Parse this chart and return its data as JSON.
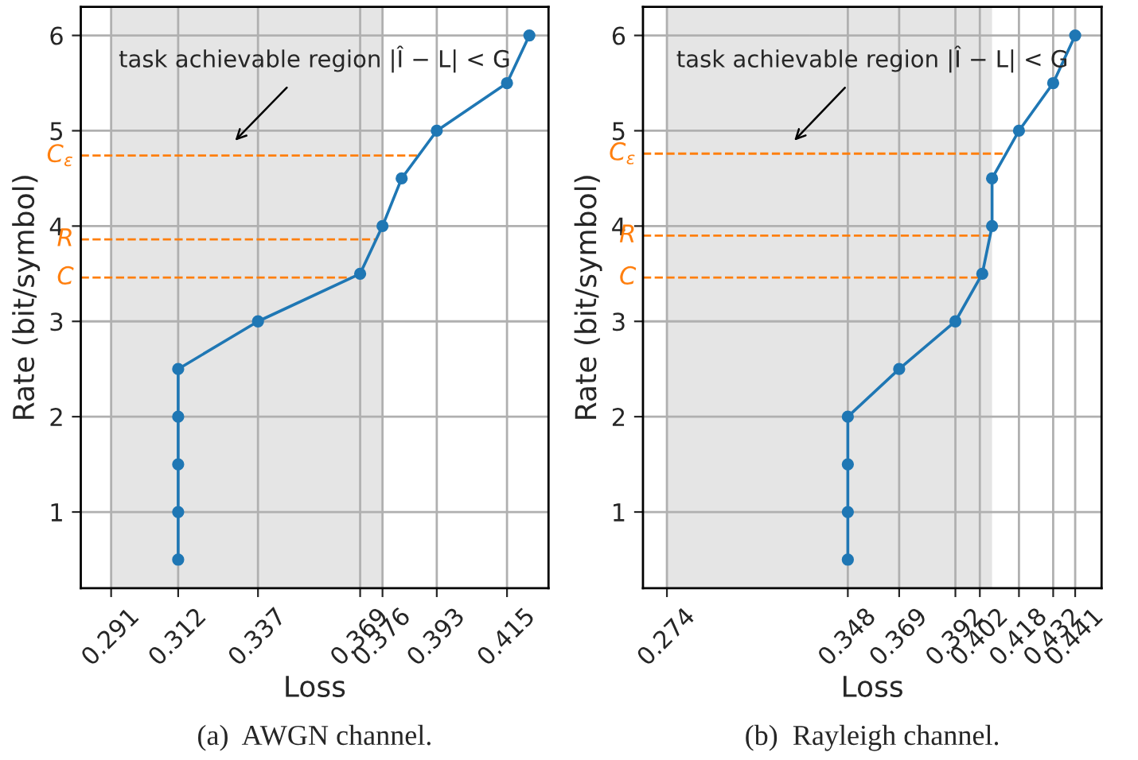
{
  "chart_data": [
    {
      "type": "line",
      "xlabel": "Loss",
      "ylabel": "Rate (bit/symbol)",
      "marker": "circle",
      "line_style": "solid",
      "grid": true,
      "xlim": [
        0.2815,
        0.428
      ],
      "xticks": [
        0.291,
        0.312,
        0.337,
        0.369,
        0.376,
        0.393,
        0.415
      ],
      "ylim": [
        0.2,
        6.3
      ],
      "yticks": [
        1,
        2,
        3,
        4,
        5,
        6
      ],
      "series": [
        {
          "color": "#1f77b4",
          "x": [
            0.312,
            0.312,
            0.312,
            0.312,
            0.312,
            0.337,
            0.369,
            0.376,
            0.382,
            0.393,
            0.415,
            0.422
          ],
          "values": [
            0.5,
            1,
            1.5,
            2,
            2.5,
            3,
            3.5,
            4,
            4.5,
            5,
            5.5,
            6
          ]
        }
      ],
      "bands": [
        {
          "axis": "x",
          "from": 0.291,
          "to": 0.376,
          "color": "#e5e5e5"
        }
      ],
      "ref_lines": [
        {
          "axis": "y",
          "value": 4.74,
          "label": "C$_{ε}$",
          "color": "#ff7f0e",
          "line_style": "dashed"
        },
        {
          "axis": "y",
          "value": 3.86,
          "label": "R",
          "color": "#ff7f0e",
          "line_style": "dashed"
        },
        {
          "axis": "y",
          "value": 3.46,
          "label": "C",
          "color": "#ff7f0e",
          "line_style": "dashed"
        }
      ],
      "annotations": [
        "task achievable region |Î − L| < G",
        "(a)  AWGN channel."
      ]
    },
    {
      "type": "line",
      "xlabel": "Loss",
      "ylabel": "Rate (bit/symbol)",
      "marker": "circle",
      "line_style": "solid",
      "grid": true,
      "xlim": [
        0.2642,
        0.4518
      ],
      "xticks": [
        0.274,
        0.348,
        0.369,
        0.392,
        0.402,
        0.418,
        0.432,
        0.441
      ],
      "ylim": [
        0.2,
        6.3
      ],
      "yticks": [
        1,
        2,
        3,
        4,
        5,
        6
      ],
      "series": [
        {
          "color": "#1f77b4",
          "x": [
            0.348,
            0.348,
            0.348,
            0.348,
            0.369,
            0.392,
            0.403,
            0.407,
            0.407,
            0.418,
            0.432,
            0.441
          ],
          "values": [
            0.5,
            1,
            1.5,
            2,
            2.5,
            3,
            3.5,
            4,
            4.5,
            5,
            5.5,
            6
          ]
        }
      ],
      "bands": [
        {
          "axis": "x",
          "from": 0.274,
          "to": 0.407,
          "color": "#e5e5e5"
        }
      ],
      "ref_lines": [
        {
          "axis": "y",
          "value": 4.76,
          "label": "C$_{ε}$",
          "color": "#ff7f0e",
          "line_style": "dashed"
        },
        {
          "axis": "y",
          "value": 3.9,
          "label": "R",
          "color": "#ff7f0e",
          "line_style": "dashed"
        },
        {
          "axis": "y",
          "value": 3.46,
          "label": "C",
          "color": "#ff7f0e",
          "line_style": "dashed"
        }
      ],
      "annotations": [
        "task achievable region |Î − L| < G",
        "(b)  Rayleigh channel."
      ]
    }
  ]
}
